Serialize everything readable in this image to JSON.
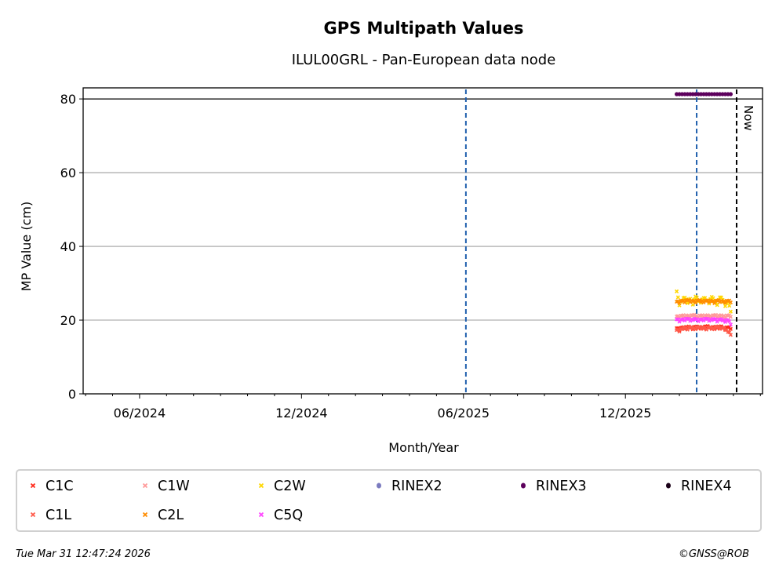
{
  "chart_data": {
    "type": "scatter",
    "title": "GPS Multipath Values",
    "subtitle": "ILUL00GRL - Pan-European data node",
    "xlabel": "Month/Year",
    "ylabel": "MP Value (cm)",
    "x_unit": "months since 06/2024",
    "xlim": [
      -2.09,
      23.08
    ],
    "ylim": [
      0,
      83
    ],
    "xticks": [
      {
        "v": 0,
        "label": "06/2024"
      },
      {
        "v": 6,
        "label": "12/2024"
      },
      {
        "v": 12,
        "label": "06/2025"
      },
      {
        "v": 18,
        "label": "12/2025"
      }
    ],
    "yticks": [
      0,
      20,
      40,
      60,
      80
    ],
    "grid": "y",
    "hline": 80,
    "vlines": [
      {
        "v": 12.09,
        "color": "#1f5fad"
      },
      {
        "v": 20.64,
        "color": "#1f5fad"
      }
    ],
    "now": {
      "v": 22.12,
      "label": "Now"
    },
    "x": [
      19.9,
      20.0,
      20.1,
      20.2,
      20.3,
      20.4,
      20.5,
      20.6,
      20.7,
      20.8,
      20.9,
      21.0,
      21.1,
      21.2,
      21.3,
      21.4,
      21.5,
      21.6,
      21.7,
      21.8,
      21.9
    ],
    "series": [
      {
        "name": "C1C",
        "color": "#ff2a1a",
        "marker": "x",
        "values": [
          17.8,
          17.2,
          18.0,
          17.6,
          18.1,
          17.9,
          17.5,
          18.2,
          17.8,
          18.0,
          17.7,
          18.3,
          17.9,
          17.6,
          18.1,
          17.8,
          18.2,
          17.9,
          17.5,
          18.0,
          17.6
        ]
      },
      {
        "name": "C1L",
        "color": "#ff5a4a",
        "marker": "x",
        "values": [
          17.3,
          16.9,
          17.6,
          17.8,
          17.4,
          18.0,
          17.7,
          17.5,
          18.1,
          17.6,
          17.9,
          17.4,
          18.0,
          17.7,
          17.5,
          18.2,
          17.6,
          17.8,
          17.3,
          16.8,
          16.0
        ]
      },
      {
        "name": "C1W",
        "color": "#ff9a9a",
        "marker": "x",
        "values": [
          21.0,
          20.6,
          21.2,
          20.9,
          21.1,
          20.8,
          21.3,
          21.0,
          20.7,
          21.2,
          20.9,
          21.1,
          21.0,
          20.8,
          21.3,
          20.9,
          21.1,
          21.0,
          20.8,
          21.2,
          20.9
        ]
      },
      {
        "name": "C2W",
        "color": "#ffd700",
        "marker": "x",
        "values": [
          27.8,
          24.0,
          25.3,
          26.1,
          24.6,
          25.8,
          24.2,
          26.4,
          25.1,
          24.7,
          26.0,
          25.4,
          24.5,
          26.3,
          25.0,
          24.1,
          26.2,
          25.5,
          23.8,
          24.9,
          22.3
        ]
      },
      {
        "name": "C2L",
        "color": "#ff8c00",
        "marker": "x",
        "values": [
          25.0,
          24.6,
          25.2,
          24.8,
          25.4,
          24.9,
          25.1,
          24.7,
          25.3,
          25.0,
          24.8,
          25.2,
          24.9,
          25.1,
          24.6,
          25.3,
          24.9,
          25.0,
          24.7,
          25.2,
          24.8
        ]
      },
      {
        "name": "C5Q",
        "color": "#ff44ff",
        "marker": "x",
        "values": [
          20.2,
          19.6,
          20.1,
          19.9,
          20.3,
          19.8,
          20.0,
          20.2,
          19.7,
          20.1,
          19.9,
          20.3,
          19.8,
          20.0,
          20.2,
          19.6,
          20.1,
          19.9,
          19.5,
          20.0,
          18.8
        ]
      },
      {
        "name": "RINEX2",
        "color": "#7b7bbf",
        "marker": "o",
        "values": []
      },
      {
        "name": "RINEX3",
        "color": "#5c005c",
        "marker": "o",
        "values": [
          81.3,
          81.3,
          81.3,
          81.3,
          81.3,
          81.3,
          81.3,
          81.3,
          81.3,
          81.3,
          81.3,
          81.3,
          81.3,
          81.3,
          81.3,
          81.3,
          81.3,
          81.3,
          81.3,
          81.3,
          81.3
        ]
      },
      {
        "name": "RINEX4",
        "color": "#1a0018",
        "marker": "o",
        "values": []
      }
    ],
    "legend_position": "bottom"
  },
  "footer": {
    "timestamp": "Tue Mar 31 12:47:24 2026",
    "credit": "©GNSS@ROB"
  }
}
